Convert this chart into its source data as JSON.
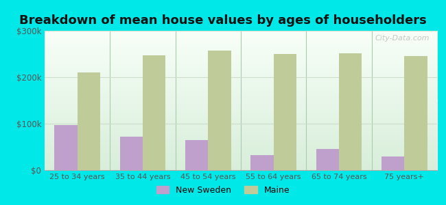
{
  "title": "Breakdown of mean house values by ages of householders",
  "categories": [
    "25 to 34 years",
    "35 to 44 years",
    "45 to 54 years",
    "55 to 64 years",
    "65 to 74 years",
    "75 years+"
  ],
  "new_sweden": [
    97000,
    72000,
    65000,
    33000,
    45000,
    30000
  ],
  "maine": [
    210000,
    247000,
    258000,
    250000,
    252000,
    245000
  ],
  "bar_color_new_sweden": "#bf9fcc",
  "bar_color_maine": "#bfcc99",
  "background_outer": "#00e8e8",
  "background_inner_top": "#d8eeda",
  "background_inner_bottom": "#f8fff8",
  "ylim": [
    0,
    300000
  ],
  "yticks": [
    0,
    100000,
    200000,
    300000
  ],
  "ytick_labels": [
    "$0",
    "$100k",
    "$200k",
    "$300k"
  ],
  "legend_new_sweden": "New Sweden",
  "legend_maine": "Maine",
  "title_fontsize": 13,
  "watermark": "City-Data.com"
}
